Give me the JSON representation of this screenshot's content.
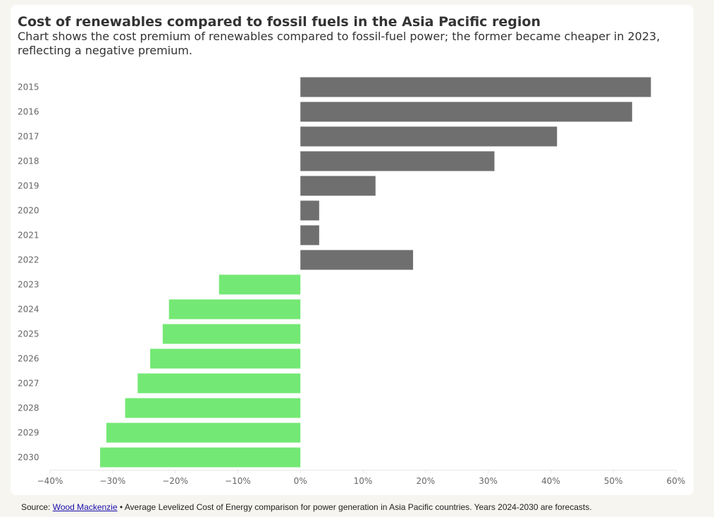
{
  "header": {
    "title": "Cost of renewables compared to fossil fuels in the Asia Pacific region",
    "subtitle": "Chart shows the cost premium of renewables compared to fossil-fuel power; the former became cheaper in 2023, reflecting a negative premium."
  },
  "footer": {
    "source_label": "Source:",
    "source_link": "Wood Mackenzie",
    "bullet": "•",
    "note": "Average Levelized Cost of Energy comparison for power generation in Asia Pacific countries. Years 2024-2030 are forecasts."
  },
  "colors": {
    "positive": "#6f6f6f",
    "negative": "#74e874",
    "grid": "#e6e6e6",
    "axis_text": "#666666"
  },
  "chart_data": {
    "type": "bar",
    "orientation": "horizontal",
    "categories": [
      "2015",
      "2016",
      "2017",
      "2018",
      "2019",
      "2020",
      "2021",
      "2022",
      "2023",
      "2024",
      "2025",
      "2026",
      "2027",
      "2028",
      "2029",
      "2030"
    ],
    "values": [
      56,
      53,
      41,
      31,
      12,
      3,
      3,
      18,
      -13,
      -21,
      -22,
      -24,
      -26,
      -28,
      -31,
      -32
    ],
    "value_unit": "%",
    "xlim": [
      -40,
      60
    ],
    "xticks": [
      -40,
      -30,
      -20,
      -10,
      0,
      10,
      20,
      30,
      40,
      50,
      60
    ],
    "xtick_labels": [
      "−40%",
      "−30%",
      "−20%",
      "−10%",
      "0%",
      "10%",
      "20%",
      "30%",
      "40%",
      "50%",
      "60%"
    ],
    "grid": false,
    "legend": "none"
  }
}
